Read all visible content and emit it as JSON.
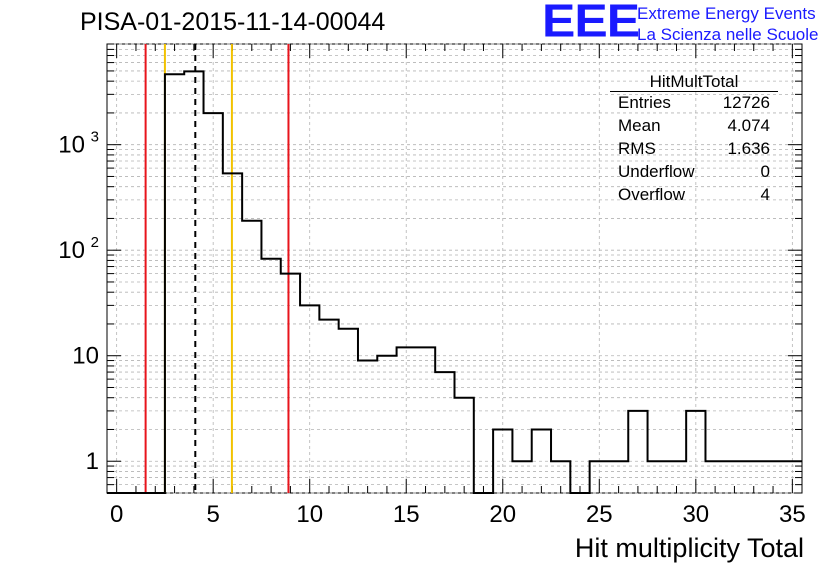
{
  "title": "PISA-01-2015-11-14-00044",
  "logo": {
    "mark": "EEE",
    "line1": "Extreme Energy Events",
    "line2": "La Scienza nelle Scuole",
    "color": "#1a1aff"
  },
  "stats": {
    "title": "HitMultTotal",
    "rows": [
      {
        "label": "Entries",
        "value": "12726"
      },
      {
        "label": "Mean",
        "value": "4.074"
      },
      {
        "label": "RMS",
        "value": "1.636"
      },
      {
        "label": "Underflow",
        "value": "0"
      },
      {
        "label": "Overflow",
        "value": "4"
      }
    ]
  },
  "chart_data": {
    "type": "histogram",
    "title": "PISA-01-2015-11-14-00044",
    "xlabel": "Hit multiplicity Total",
    "ylabel": "",
    "xlim": [
      -0.5,
      35.5
    ],
    "ylim": [
      0.5,
      9000
    ],
    "y_scale": "log",
    "grid": true,
    "x_ticks": [
      "0",
      "5",
      "10",
      "15",
      "20",
      "25",
      "30",
      "35"
    ],
    "y_ticks": [
      {
        "value": 1,
        "label": "1"
      },
      {
        "value": 10,
        "label": "10"
      },
      {
        "value": 100,
        "label": "10",
        "exp": "2"
      },
      {
        "value": 1000,
        "label": "10",
        "exp": "3"
      }
    ],
    "bin_edges_start": -0.5,
    "bin_width": 1,
    "bin_counts": [
      0,
      0,
      0,
      4650,
      4950,
      1990,
      535,
      190,
      83,
      60,
      30,
      22,
      18,
      9,
      10,
      12,
      12,
      7,
      4,
      0,
      2,
      1,
      2,
      1,
      0,
      1,
      1,
      3,
      1,
      1,
      3,
      1,
      1,
      1,
      1,
      1
    ],
    "vertical_lines": [
      {
        "x": 1.5,
        "color": "#e8141c",
        "style": "solid"
      },
      {
        "x": 2.5,
        "color": "#f2c200",
        "style": "solid"
      },
      {
        "x": 4.074,
        "color": "#000000",
        "style": "dashed"
      },
      {
        "x": 5.97,
        "color": "#f2c200",
        "style": "solid"
      },
      {
        "x": 8.9,
        "color": "#e8141c",
        "style": "solid"
      }
    ],
    "line_color": "#000000"
  }
}
